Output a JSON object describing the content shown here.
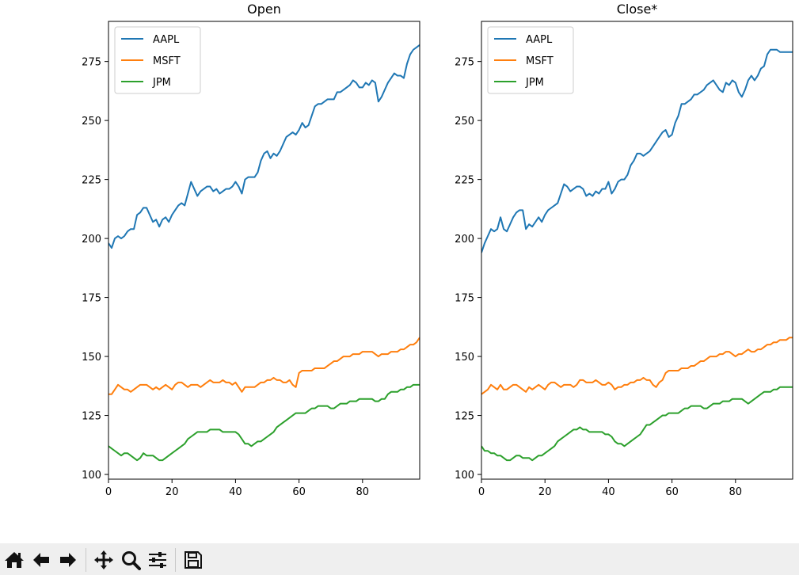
{
  "chart_data": [
    {
      "type": "line",
      "title": "Open",
      "xlabel": "",
      "ylabel": "",
      "xlim": [
        0,
        98
      ],
      "ylim": [
        98,
        292
      ],
      "xticks": [
        0,
        20,
        40,
        60,
        80
      ],
      "yticks": [
        100,
        125,
        150,
        175,
        200,
        225,
        250,
        275
      ],
      "grid": false,
      "legend": "upper-left",
      "series": [
        {
          "name": "AAPL",
          "color": "#1f77b4",
          "values": [
            198,
            196,
            200,
            201,
            200,
            201,
            203,
            204,
            204,
            210,
            211,
            213,
            213,
            210,
            207,
            208,
            205,
            208,
            209,
            207,
            210,
            212,
            214,
            215,
            214,
            219,
            224,
            221,
            218,
            220,
            221,
            222,
            222,
            220,
            221,
            219,
            220,
            221,
            221,
            222,
            224,
            222,
            219,
            225,
            226,
            226,
            226,
            228,
            233,
            236,
            237,
            234,
            236,
            235,
            237,
            240,
            243,
            244,
            245,
            244,
            246,
            249,
            247,
            248,
            252,
            256,
            257,
            257,
            258,
            259,
            259,
            259,
            262,
            262,
            263,
            264,
            265,
            267,
            266,
            264,
            264,
            266,
            265,
            267,
            266,
            258,
            260,
            263,
            266,
            268,
            270,
            269,
            269,
            268,
            274,
            278,
            280,
            281,
            282
          ]
        },
        {
          "name": "MSFT",
          "color": "#ff7f0e",
          "values": [
            134,
            134,
            136,
            138,
            137,
            136,
            136,
            135,
            136,
            137,
            138,
            138,
            138,
            137,
            136,
            137,
            136,
            137,
            138,
            137,
            136,
            138,
            139,
            139,
            138,
            137,
            138,
            138,
            138,
            137,
            138,
            139,
            140,
            139,
            139,
            139,
            140,
            139,
            139,
            138,
            139,
            137,
            135,
            137,
            137,
            137,
            137,
            138,
            139,
            139,
            140,
            140,
            141,
            140,
            140,
            139,
            139,
            140,
            138,
            137,
            143,
            144,
            144,
            144,
            144,
            145,
            145,
            145,
            145,
            146,
            147,
            148,
            148,
            149,
            150,
            150,
            150,
            151,
            151,
            151,
            152,
            152,
            152,
            152,
            151,
            150,
            151,
            151,
            151,
            152,
            152,
            152,
            153,
            153,
            154,
            155,
            155,
            156,
            158
          ]
        },
        {
          "name": "JPM",
          "color": "#2ca02c",
          "values": [
            112,
            111,
            110,
            109,
            108,
            109,
            109,
            108,
            107,
            106,
            107,
            109,
            108,
            108,
            108,
            107,
            106,
            106,
            107,
            108,
            109,
            110,
            111,
            112,
            113,
            115,
            116,
            117,
            118,
            118,
            118,
            118,
            119,
            119,
            119,
            119,
            118,
            118,
            118,
            118,
            118,
            117,
            115,
            113,
            113,
            112,
            113,
            114,
            114,
            115,
            116,
            117,
            118,
            120,
            121,
            122,
            123,
            124,
            125,
            126,
            126,
            126,
            126,
            127,
            128,
            128,
            129,
            129,
            129,
            129,
            128,
            128,
            129,
            130,
            130,
            130,
            131,
            131,
            131,
            132,
            132,
            132,
            132,
            132,
            131,
            131,
            132,
            132,
            134,
            135,
            135,
            135,
            136,
            136,
            137,
            137,
            138,
            138,
            138
          ]
        }
      ]
    },
    {
      "type": "line",
      "title": "Close*",
      "xlabel": "",
      "ylabel": "",
      "xlim": [
        0,
        98
      ],
      "ylim": [
        98,
        292
      ],
      "xticks": [
        0,
        20,
        40,
        60,
        80
      ],
      "yticks": [
        100,
        125,
        150,
        175,
        200,
        225,
        250,
        275
      ],
      "grid": false,
      "legend": "upper-left",
      "series": [
        {
          "name": "AAPL",
          "color": "#1f77b4",
          "values": [
            194,
            198,
            201,
            204,
            203,
            204,
            209,
            204,
            203,
            206,
            209,
            211,
            212,
            212,
            204,
            206,
            205,
            207,
            209,
            207,
            210,
            212,
            213,
            214,
            215,
            219,
            223,
            222,
            220,
            221,
            222,
            222,
            221,
            218,
            219,
            218,
            220,
            219,
            221,
            221,
            224,
            219,
            221,
            224,
            225,
            225,
            227,
            231,
            233,
            236,
            236,
            235,
            236,
            237,
            239,
            241,
            243,
            245,
            246,
            243,
            244,
            249,
            252,
            257,
            257,
            258,
            259,
            261,
            261,
            262,
            263,
            265,
            266,
            267,
            265,
            263,
            262,
            266,
            265,
            267,
            266,
            262,
            260,
            263,
            267,
            269,
            267,
            269,
            272,
            273,
            278,
            280,
            280,
            280,
            279,
            279,
            279,
            279,
            279
          ]
        },
        {
          "name": "MSFT",
          "color": "#ff7f0e",
          "values": [
            134,
            135,
            136,
            138,
            137,
            136,
            138,
            136,
            136,
            137,
            138,
            138,
            137,
            136,
            135,
            137,
            136,
            137,
            138,
            137,
            136,
            138,
            139,
            139,
            138,
            137,
            138,
            138,
            138,
            137,
            138,
            140,
            140,
            139,
            139,
            139,
            140,
            139,
            138,
            138,
            139,
            138,
            136,
            137,
            137,
            138,
            138,
            139,
            139,
            140,
            140,
            141,
            140,
            140,
            138,
            137,
            139,
            140,
            143,
            144,
            144,
            144,
            144,
            145,
            145,
            145,
            146,
            146,
            147,
            148,
            148,
            149,
            150,
            150,
            150,
            151,
            151,
            152,
            152,
            151,
            150,
            151,
            151,
            152,
            153,
            152,
            152,
            153,
            153,
            154,
            155,
            155,
            156,
            156,
            157,
            157,
            157,
            158,
            158
          ]
        },
        {
          "name": "JPM",
          "color": "#2ca02c",
          "values": [
            112,
            110,
            110,
            109,
            109,
            108,
            108,
            107,
            106,
            106,
            107,
            108,
            108,
            107,
            107,
            107,
            106,
            107,
            108,
            108,
            109,
            110,
            111,
            112,
            114,
            115,
            116,
            117,
            118,
            119,
            119,
            120,
            119,
            119,
            118,
            118,
            118,
            118,
            118,
            117,
            117,
            116,
            114,
            113,
            113,
            112,
            113,
            114,
            115,
            116,
            117,
            119,
            121,
            121,
            122,
            123,
            124,
            125,
            125,
            126,
            126,
            126,
            126,
            127,
            128,
            128,
            129,
            129,
            129,
            129,
            128,
            128,
            129,
            130,
            130,
            130,
            131,
            131,
            131,
            132,
            132,
            132,
            132,
            131,
            130,
            131,
            132,
            133,
            134,
            135,
            135,
            135,
            136,
            136,
            137,
            137,
            137,
            137,
            137
          ]
        }
      ]
    }
  ],
  "toolbar": {
    "buttons": [
      {
        "name": "home-button",
        "icon": "home-icon"
      },
      {
        "name": "back-button",
        "icon": "arrow-left-icon"
      },
      {
        "name": "forward-button",
        "icon": "arrow-right-icon"
      },
      {
        "name": "pan-button",
        "icon": "move-icon"
      },
      {
        "name": "zoom-button",
        "icon": "magnifier-icon"
      },
      {
        "name": "configure-subplots-button",
        "icon": "sliders-icon"
      },
      {
        "name": "save-button",
        "icon": "floppy-icon"
      }
    ]
  }
}
